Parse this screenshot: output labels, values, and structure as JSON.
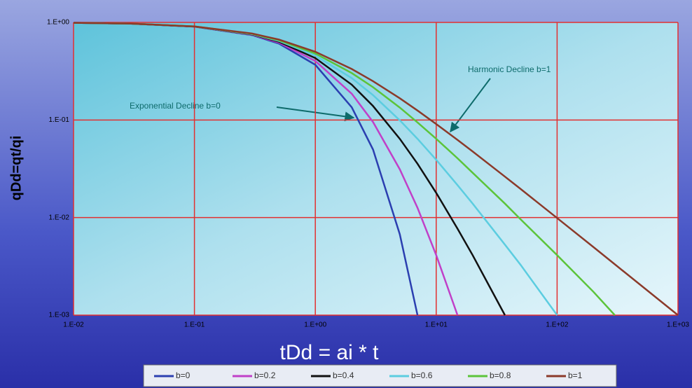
{
  "chart_data": {
    "type": "line",
    "x_label": "tDd = ai * t",
    "y_label": "qDd=qt/qi",
    "annotations": [
      "Exponential Decline b=0",
      "Harmonic Decline b=1"
    ],
    "xscale": "log",
    "yscale": "log",
    "grid": true,
    "xlim": [
      0.01,
      1000
    ],
    "ylim": [
      0.001,
      1
    ],
    "xticks": [
      {
        "value": 0.01,
        "label": "1.E-02"
      },
      {
        "value": 0.1,
        "label": "1.E-01"
      },
      {
        "value": 1,
        "label": "1.E+00"
      },
      {
        "value": 10,
        "label": "1.E+01"
      },
      {
        "value": 100,
        "label": "1.E+02"
      },
      {
        "value": 1000,
        "label": "1.E+03"
      }
    ],
    "yticks": [
      {
        "value": 1,
        "label": "1.E+00"
      },
      {
        "value": 0.1,
        "label": "1.E-01"
      },
      {
        "value": 0.01,
        "label": "1.E-02"
      },
      {
        "value": 0.001,
        "label": "1.E-03"
      }
    ],
    "x": [
      0.01,
      0.03,
      0.1,
      0.3,
      0.5,
      1,
      2,
      3,
      5,
      7,
      10,
      15,
      20,
      37,
      50,
      100,
      200,
      300,
      1000
    ],
    "series": [
      {
        "name": "b=0",
        "color": "#2b3fb0",
        "values": [
          0.99,
          0.97,
          0.905,
          0.741,
          0.607,
          0.368,
          0.135,
          0.0498,
          0.00674,
          0.001,
          null,
          null,
          null,
          null,
          null,
          null,
          null,
          null,
          null
        ]
      },
      {
        "name": "b=0.2",
        "color": "#c040c8",
        "values": [
          0.99,
          0.97,
          0.906,
          0.747,
          0.621,
          0.402,
          0.186,
          0.0954,
          0.03125,
          0.0126,
          0.00412,
          0.001,
          null,
          null,
          null,
          null,
          null,
          null,
          null
        ]
      },
      {
        "name": "b=0.4",
        "color": "#111111",
        "values": [
          0.99,
          0.971,
          0.907,
          0.753,
          0.634,
          0.431,
          0.23,
          0.139,
          0.0642,
          0.0356,
          0.0179,
          0.0077,
          0.00412,
          0.001,
          null,
          null,
          null,
          null,
          null
        ]
      },
      {
        "name": "b=0.6",
        "color": "#5ccde0",
        "values": [
          0.99,
          0.971,
          0.908,
          0.759,
          0.646,
          0.457,
          0.269,
          0.18,
          0.0992,
          0.0641,
          0.0391,
          0.0215,
          0.0139,
          0.00528,
          0.00327,
          0.001,
          null,
          null,
          null
        ]
      },
      {
        "name": "b=0.8",
        "color": "#5cc43a",
        "values": [
          0.99,
          0.971,
          0.908,
          0.764,
          0.657,
          0.48,
          0.303,
          0.217,
          0.134,
          0.0945,
          0.0642,
          0.0405,
          0.0288,
          0.0139,
          0.00957,
          0.00412,
          0.00173,
          0.001,
          null
        ]
      },
      {
        "name": "b=1",
        "color": "#8b3a2a",
        "values": [
          0.99,
          0.971,
          0.909,
          0.769,
          0.667,
          0.5,
          0.333,
          0.25,
          0.167,
          0.125,
          0.0909,
          0.0625,
          0.0476,
          0.0263,
          0.0196,
          0.0099,
          0.00498,
          0.00332,
          0.001
        ]
      }
    ]
  }
}
